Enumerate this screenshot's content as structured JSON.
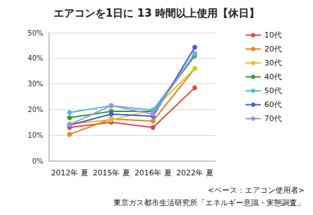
{
  "chart_data": {
    "type": "line",
    "title": "エアコンを1日に 13 時間以上使用【休日】",
    "categories": [
      "2012年 夏",
      "2015年 夏",
      "2016年 夏",
      "2022年 夏"
    ],
    "series": [
      {
        "name": "10代",
        "color": "#e8474c",
        "values": [
          13.0,
          15.0,
          13.0,
          28.5
        ]
      },
      {
        "name": "20代",
        "color": "#ef8121",
        "values": [
          10.3,
          16.3,
          15.5,
          36.0
        ]
      },
      {
        "name": "30代",
        "color": "#d8c81c",
        "values": [
          14.4,
          16.0,
          19.8,
          36.0
        ]
      },
      {
        "name": "40代",
        "color": "#2ea03a",
        "values": [
          16.8,
          19.3,
          19.3,
          41.0
        ]
      },
      {
        "name": "50代",
        "color": "#4fb8e6",
        "values": [
          18.8,
          21.5,
          19.8,
          41.5
        ]
      },
      {
        "name": "60代",
        "color": "#3d5fd6",
        "values": [
          13.9,
          18.2,
          17.4,
          44.3
        ]
      },
      {
        "name": "70代",
        "color": "#a88ee6",
        "values": [
          14.1,
          21.5,
          18.2,
          42.0
        ]
      }
    ],
    "ylim": [
      0,
      50
    ],
    "yticks": [
      {
        "value": 0,
        "label": "0%"
      },
      {
        "value": 10,
        "label": "10%"
      },
      {
        "value": 20,
        "label": "20%"
      },
      {
        "value": 30,
        "label": "30%"
      },
      {
        "value": 40,
        "label": "40%"
      },
      {
        "value": 50,
        "label": "50%"
      }
    ],
    "grid": true,
    "legend": "right",
    "marker": "circle",
    "annotations": [
      "<ベース：エアコン使用者>",
      "東京ガス都市生活研究所「エネルギー意識・実態調査」"
    ]
  }
}
